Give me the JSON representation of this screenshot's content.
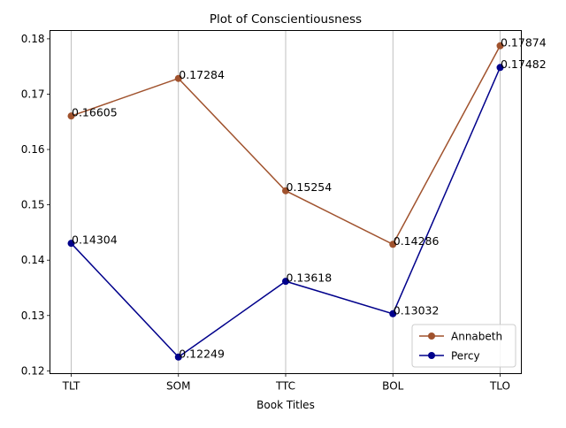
{
  "chart_data": {
    "type": "line",
    "title": "Plot of Conscientiousness",
    "xlabel": "Book Titles",
    "ylabel": "",
    "categories": [
      "TLT",
      "SOM",
      "TTC",
      "BOL",
      "TLO"
    ],
    "ylim": [
      0.1195,
      0.1815
    ],
    "yticks": [
      0.12,
      0.13,
      0.14,
      0.15,
      0.16,
      0.17,
      0.18
    ],
    "ytick_labels": [
      "0.12",
      "0.13",
      "0.14",
      "0.15",
      "0.16",
      "0.17",
      "0.18"
    ],
    "grid": "vertical",
    "legend_position": "lower-right",
    "series": [
      {
        "name": "Annabeth",
        "color": "#a0522d",
        "values": [
          0.16605,
          0.17284,
          0.15254,
          0.14286,
          0.17874
        ],
        "labels": [
          "0.16605",
          "0.17284",
          "0.15254",
          "0.14286",
          "0.17874"
        ]
      },
      {
        "name": "Percy",
        "color": "#00008b",
        "values": [
          0.14304,
          0.12249,
          0.13618,
          0.13032,
          0.17482
        ],
        "labels": [
          "0.14304",
          "0.12249",
          "0.13618",
          "0.13032",
          "0.17482"
        ]
      }
    ]
  }
}
